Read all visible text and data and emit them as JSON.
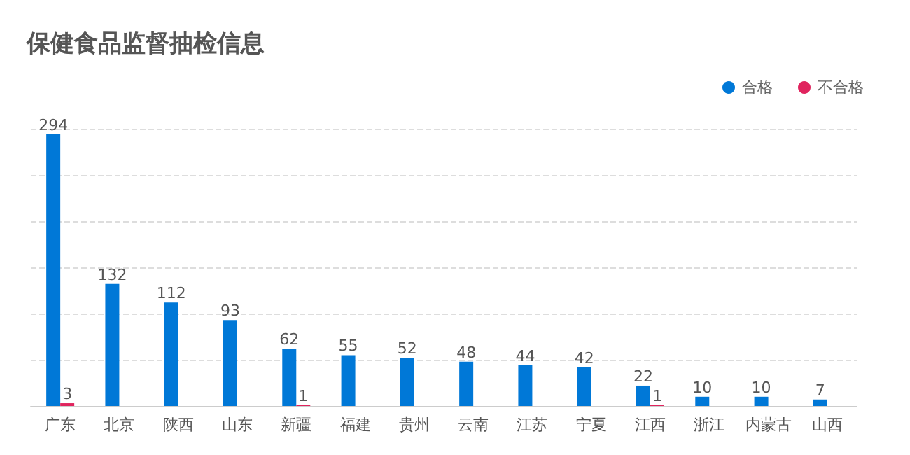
{
  "chart_data": {
    "type": "bar",
    "title": "保健食品监督抽检信息",
    "categories": [
      "广东",
      "北京",
      "陕西",
      "山东",
      "新疆",
      "福建",
      "贵州",
      "云南",
      "江苏",
      "宁夏",
      "江西",
      "浙江",
      "内蒙古",
      "山西"
    ],
    "series": [
      {
        "name": "合格",
        "color": "#0078d7",
        "values": [
          294,
          132,
          112,
          93,
          62,
          55,
          52,
          48,
          44,
          42,
          22,
          10,
          10,
          7
        ]
      },
      {
        "name": "不合格",
        "color": "#e0245e",
        "values": [
          3,
          null,
          null,
          null,
          1,
          null,
          null,
          null,
          null,
          null,
          1,
          null,
          null,
          null
        ]
      }
    ],
    "ylim": [
      0,
      300
    ],
    "yticks": [
      {
        "value": 0,
        "label": null
      },
      {
        "value": 50,
        "label": null
      },
      {
        "value": 100,
        "label": null
      },
      {
        "value": 150,
        "label": null
      },
      {
        "value": 200,
        "label": null
      },
      {
        "value": 250,
        "label": null
      },
      {
        "value": 300,
        "label": null
      }
    ],
    "tick_labels": "x",
    "grid": "y",
    "legend": "top right",
    "data_labels": true
  }
}
